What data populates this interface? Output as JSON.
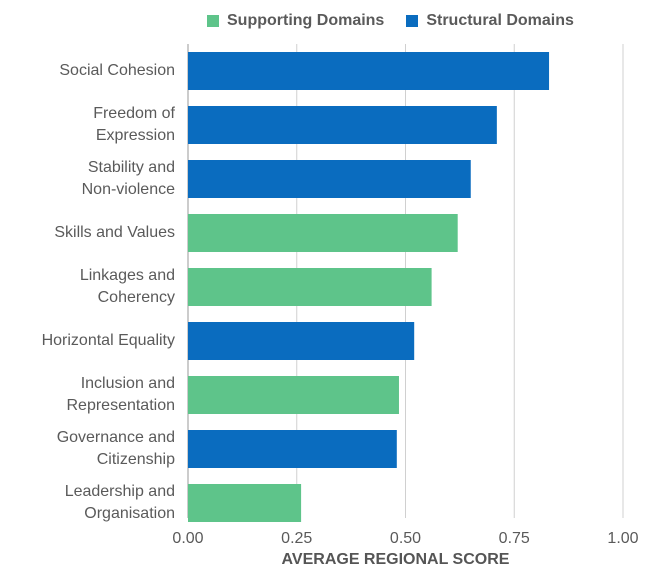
{
  "chart_data": {
    "type": "bar",
    "orientation": "horizontal",
    "categories": [
      [
        "Social Cohesion"
      ],
      [
        "Freedom of",
        "Expression"
      ],
      [
        "Stability and",
        "Non-violence"
      ],
      [
        "Skills and Values"
      ],
      [
        "Linkages and",
        "Coherency"
      ],
      [
        "Horizontal Equality"
      ],
      [
        "Inclusion and",
        "Representation"
      ],
      [
        "Governance and",
        "Citizenship"
      ],
      [
        "Leadership and",
        "Organisation"
      ]
    ],
    "values": [
      0.83,
      0.71,
      0.65,
      0.62,
      0.56,
      0.52,
      0.485,
      0.48,
      0.26
    ],
    "domain": [
      "structural",
      "structural",
      "structural",
      "supporting",
      "supporting",
      "structural",
      "supporting",
      "structural",
      "supporting"
    ],
    "legend": [
      {
        "key": "supporting",
        "label": "Supporting Domains",
        "color": "#5ec48a"
      },
      {
        "key": "structural",
        "label": "Structural Domains",
        "color": "#0a6cbf"
      }
    ],
    "xlabel": "AVERAGE REGIONAL SCORE",
    "xlim": [
      0,
      1
    ],
    "xticks": [
      "0.00",
      "0.25",
      "0.50",
      "0.75",
      "1.00"
    ],
    "grid": "vertical"
  }
}
